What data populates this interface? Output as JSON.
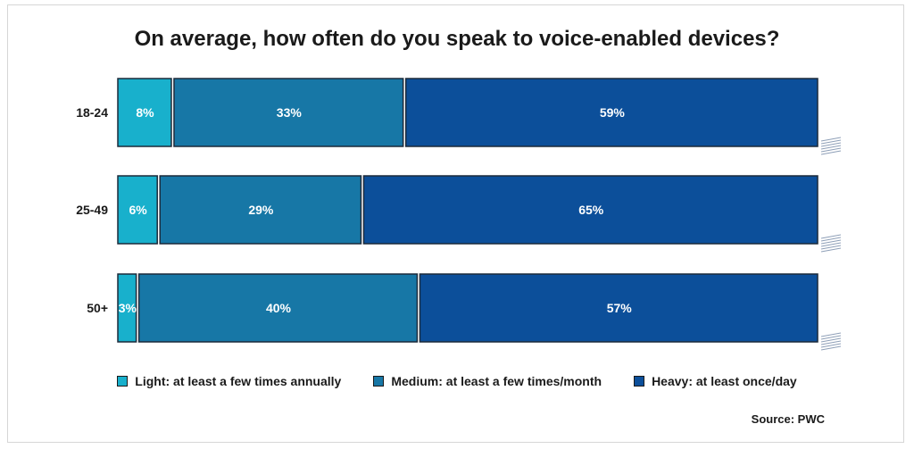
{
  "title": "On average, how often do you speak to voice-enabled devices?",
  "source": "Source: PWC",
  "colors": {
    "light": "#18b0cc",
    "medium": "#1777a6",
    "heavy": "#0c4f9a",
    "outline": "#1c2a3a"
  },
  "chart_data": {
    "type": "bar",
    "orientation": "horizontal",
    "stacked": true,
    "title": "On average, how often do you speak to voice-enabled devices?",
    "categories": [
      "18-24",
      "25-49",
      "50+"
    ],
    "series": [
      {
        "name": "Light: at least a few times annually",
        "values": [
          8,
          6,
          3
        ],
        "color": "#18b0cc"
      },
      {
        "name": "Medium: at least a few times/month",
        "values": [
          33,
          29,
          40
        ],
        "color": "#1777a6"
      },
      {
        "name": "Heavy: at least once/day",
        "values": [
          59,
          65,
          57
        ],
        "color": "#0c4f9a"
      }
    ],
    "value_labels": [
      [
        "8%",
        "33%",
        "59%"
      ],
      [
        "6%",
        "29%",
        "65%"
      ],
      [
        "3%",
        "40%",
        "57%"
      ]
    ],
    "xlim": [
      0,
      100
    ],
    "grid": false,
    "legend": "bottom"
  }
}
